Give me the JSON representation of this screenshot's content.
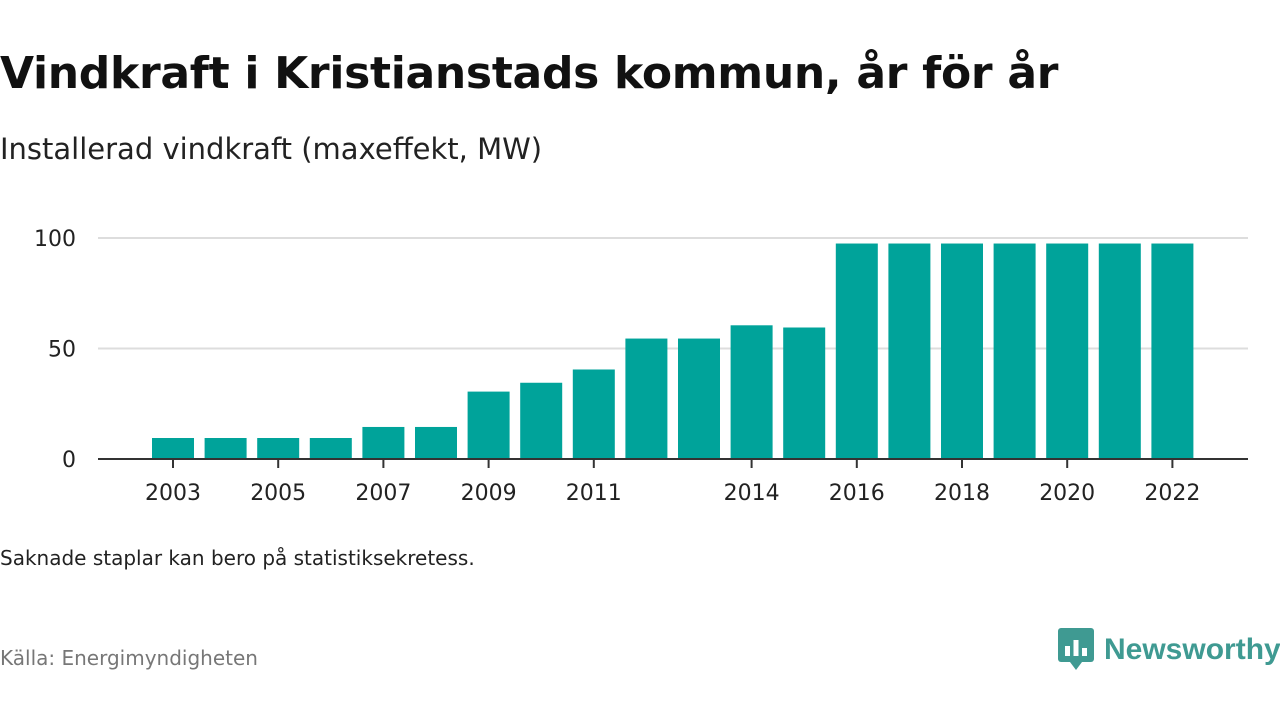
{
  "title": "Vindkraft i Kristianstads kommun, år för år",
  "subtitle": "Installerad vindkraft (maxeffekt, MW)",
  "note": "Saknade staplar kan bero på statistiksekretess.",
  "source": "Källa: Energimyndigheten",
  "brand": {
    "name": "Newsworthy",
    "icon": "newsworthy-logo-icon",
    "color": "#3f9a92"
  },
  "chart_data": {
    "type": "bar",
    "categories": [
      "2003",
      "2004",
      "2005",
      "2006",
      "2007",
      "2008",
      "2009",
      "2010",
      "2011",
      "2012",
      "2013",
      "2014",
      "2015",
      "2016",
      "2017",
      "2018",
      "2019",
      "2020",
      "2021",
      "2022"
    ],
    "values": [
      9.5,
      9.5,
      9.5,
      9.5,
      14.5,
      14.5,
      30.5,
      34.5,
      40.5,
      54.5,
      54.5,
      60.5,
      59.5,
      97.5,
      97.5,
      97.5,
      97.5,
      97.5,
      97.5,
      97.5
    ],
    "x_tick_labels": [
      "2003",
      "2005",
      "2007",
      "2009",
      "2011",
      "2014",
      "2016",
      "2018",
      "2020",
      "2022"
    ],
    "y_ticks": [
      0,
      50,
      100
    ],
    "ylim": [
      0,
      100
    ],
    "bar_color": "#00a39a",
    "grid": true,
    "xlabel": "",
    "ylabel": ""
  }
}
